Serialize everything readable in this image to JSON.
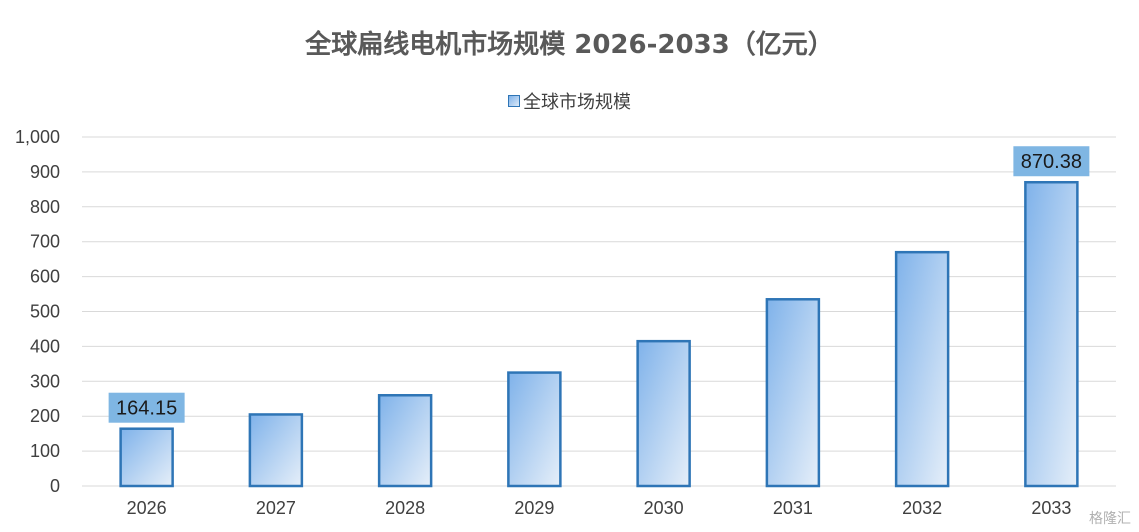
{
  "chart_data": {
    "type": "bar",
    "title": "全球扁线电机市场规模 2026-2033（亿元）",
    "legend": [
      "全球市场规模"
    ],
    "legend_position": "top",
    "categories": [
      "2026",
      "2027",
      "2028",
      "2029",
      "2030",
      "2031",
      "2032",
      "2033"
    ],
    "series": [
      {
        "name": "全球市场规模",
        "values": [
          164.15,
          205,
          260,
          325,
          415,
          535,
          670,
          870.38
        ]
      }
    ],
    "data_labels": [
      {
        "category": "2026",
        "text": "164.15"
      },
      {
        "category": "2033",
        "text": "870.38"
      }
    ],
    "y_ticks": [
      "0",
      "100",
      "200",
      "300",
      "400",
      "500",
      "600",
      "700",
      "800",
      "900",
      "1,000"
    ],
    "ylim": [
      0,
      1000
    ],
    "grid": true,
    "colors": {
      "bar_border": "#2e75b6",
      "bar_fill_dark": "#7fb2ea",
      "bar_fill_light": "#dce9f7",
      "label_bg": "#7fb6e3",
      "grid": "#d9d9d9"
    }
  },
  "watermark": "格隆汇"
}
